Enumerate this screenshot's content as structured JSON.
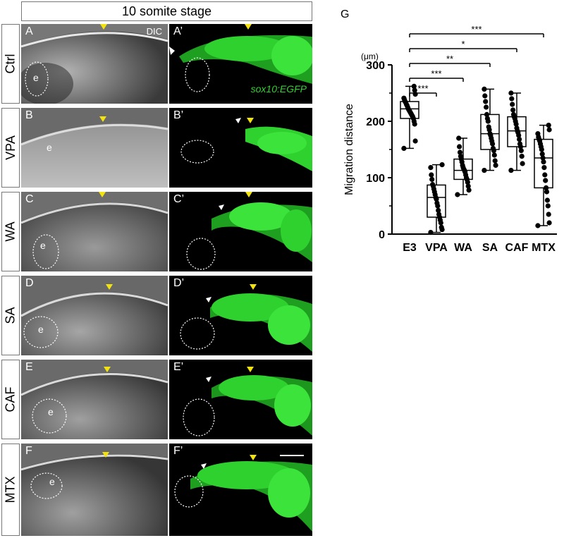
{
  "header": {
    "title": "10 somite stage"
  },
  "rows": [
    {
      "condition": "Ctrl",
      "dic_label": "A",
      "fluo_label": "A’"
    },
    {
      "condition": "VPA",
      "dic_label": "B",
      "fluo_label": "B’"
    },
    {
      "condition": "WA",
      "dic_label": "C",
      "fluo_label": "C’"
    },
    {
      "condition": "SA",
      "dic_label": "D",
      "fluo_label": "D’"
    },
    {
      "condition": "CAF",
      "dic_label": "E",
      "fluo_label": "E’"
    },
    {
      "condition": "MTX",
      "dic_label": "F",
      "fluo_label": "F’"
    }
  ],
  "annotations": {
    "dic": "DIC",
    "reporter": "sox10:EGFP",
    "eye": "e"
  },
  "colors": {
    "gfp": "#2fd12f",
    "yellow_arrowhead": "#f2e30f",
    "white_arrowhead": "#ffffff"
  },
  "panel_g": {
    "label": "G",
    "chart_data": {
      "type": "box",
      "categories": [
        "E3",
        "VPA",
        "WA",
        "SA",
        "CAF",
        "MTX"
      ],
      "ylabel": "Migration distance",
      "unit": "(μm)",
      "ylim": [
        0,
        300
      ],
      "yticks": [
        0,
        100,
        200,
        300
      ],
      "boxes": [
        {
          "min": 152,
          "q1": 205,
          "median": 222,
          "q3": 235,
          "max": 262
        },
        {
          "min": 3,
          "q1": 30,
          "median": 65,
          "q3": 87,
          "max": 123
        },
        {
          "min": 70,
          "q1": 97,
          "median": 113,
          "q3": 133,
          "max": 170
        },
        {
          "min": 113,
          "q1": 150,
          "median": 178,
          "q3": 212,
          "max": 257
        },
        {
          "min": 113,
          "q1": 155,
          "median": 183,
          "q3": 208,
          "max": 250
        },
        {
          "min": 15,
          "q1": 82,
          "median": 135,
          "q3": 168,
          "max": 193
        }
      ],
      "points": [
        [
          152,
          165,
          195,
          200,
          205,
          208,
          210,
          212,
          214,
          216,
          218,
          220,
          222,
          225,
          228,
          230,
          233,
          235,
          238,
          241,
          248,
          255,
          262
        ],
        [
          3,
          8,
          12,
          20,
          25,
          30,
          35,
          42,
          50,
          55,
          62,
          65,
          70,
          75,
          80,
          85,
          88,
          97,
          105,
          118,
          123
        ],
        [
          70,
          78,
          85,
          92,
          97,
          100,
          105,
          110,
          113,
          115,
          118,
          122,
          128,
          133,
          138,
          145,
          155,
          170
        ],
        [
          113,
          122,
          130,
          140,
          148,
          152,
          160,
          165,
          170,
          175,
          178,
          185,
          190,
          200,
          205,
          212,
          225,
          235,
          245,
          257
        ],
        [
          113,
          125,
          138,
          148,
          155,
          160,
          168,
          175,
          180,
          183,
          188,
          195,
          200,
          205,
          208,
          212,
          220,
          230,
          240,
          250
        ],
        [
          15,
          20,
          35,
          50,
          60,
          75,
          82,
          95,
          105,
          118,
          128,
          135,
          142,
          150,
          155,
          160,
          165,
          168,
          172,
          178,
          185,
          193
        ]
      ],
      "significance": [
        {
          "from": "E3",
          "to": "MTX",
          "label": "***"
        },
        {
          "from": "E3",
          "to": "CAF",
          "label": "*"
        },
        {
          "from": "E3",
          "to": "SA",
          "label": "**"
        },
        {
          "from": "E3",
          "to": "WA",
          "label": "***"
        },
        {
          "from": "E3",
          "to": "VPA",
          "label": "***"
        }
      ]
    }
  }
}
